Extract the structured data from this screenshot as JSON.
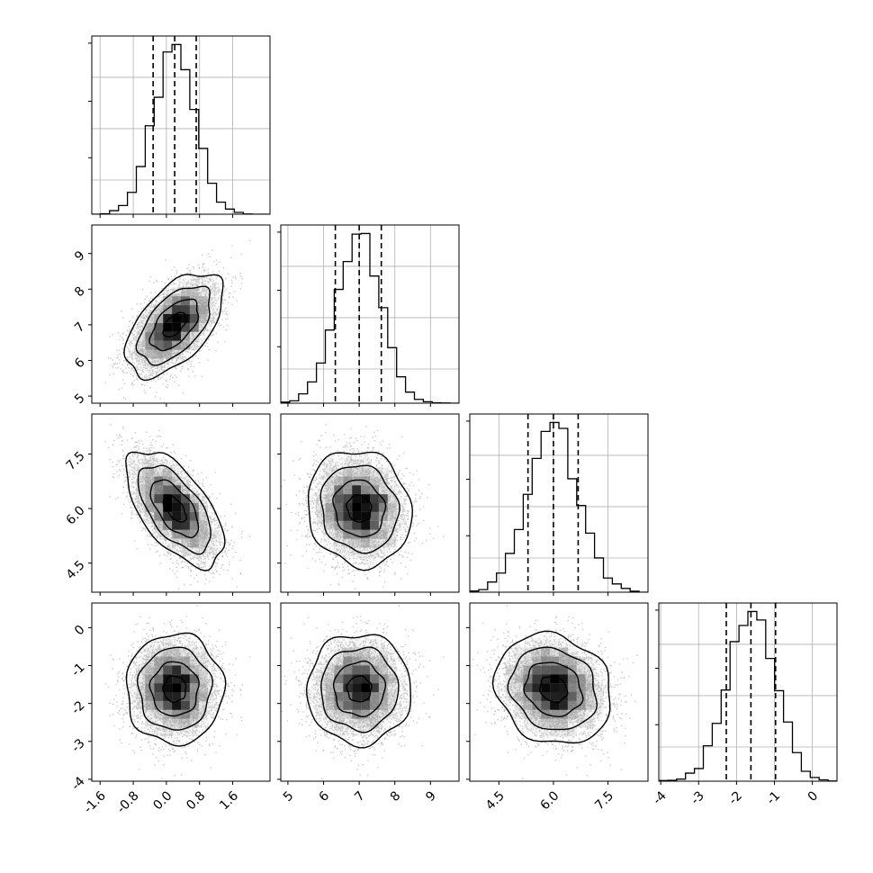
{
  "chart_data": {
    "type": "corner",
    "parameters": 4,
    "axes_ranges": [
      [
        -1.8,
        2.5
      ],
      [
        4.8,
        9.8
      ],
      [
        3.7,
        8.6
      ],
      [
        -4.05,
        0.65
      ]
    ],
    "ticks": [
      [
        "-1.6",
        "-0.8",
        "0.0",
        "0.8",
        "1.6"
      ],
      [
        "5",
        "6",
        "7",
        "8",
        "9"
      ],
      [
        "4.5",
        "6.0",
        "7.5"
      ],
      [
        "-4",
        "-3",
        "-2",
        "-1",
        "0"
      ]
    ],
    "tick_values": [
      [
        -1.6,
        -0.8,
        0.0,
        0.8,
        1.6
      ],
      [
        5,
        6,
        7,
        8,
        9
      ],
      [
        4.5,
        6.0,
        7.5
      ],
      [
        -4,
        -3,
        -2,
        -1,
        0
      ]
    ],
    "means": [
      0.2,
      7.0,
      6.0,
      -1.62
    ],
    "sigmas": [
      0.5,
      0.62,
      0.68,
      0.62
    ],
    "quantiles_16_50_84": [
      [
        -0.32,
        0.2,
        0.72
      ],
      [
        6.33,
        7.0,
        7.62
      ],
      [
        5.3,
        6.0,
        6.68
      ],
      [
        -2.27,
        -1.62,
        -0.97
      ]
    ],
    "correlations": [
      [
        1.0,
        0.55,
        -0.6,
        0.0
      ],
      [
        0.55,
        1.0,
        -0.1,
        0.0
      ],
      [
        -0.6,
        -0.1,
        1.0,
        -0.15
      ],
      [
        0.0,
        0.0,
        -0.15,
        1.0
      ]
    ],
    "histogram_style": "step",
    "quantile_lines": "dashed",
    "grid": true,
    "scatter_color": "#bdbdbd",
    "density_color_scale": [
      "#ffffff",
      "#000000"
    ],
    "contour_color": "#000000",
    "title": "",
    "xlabel": "",
    "ylabel": ""
  }
}
